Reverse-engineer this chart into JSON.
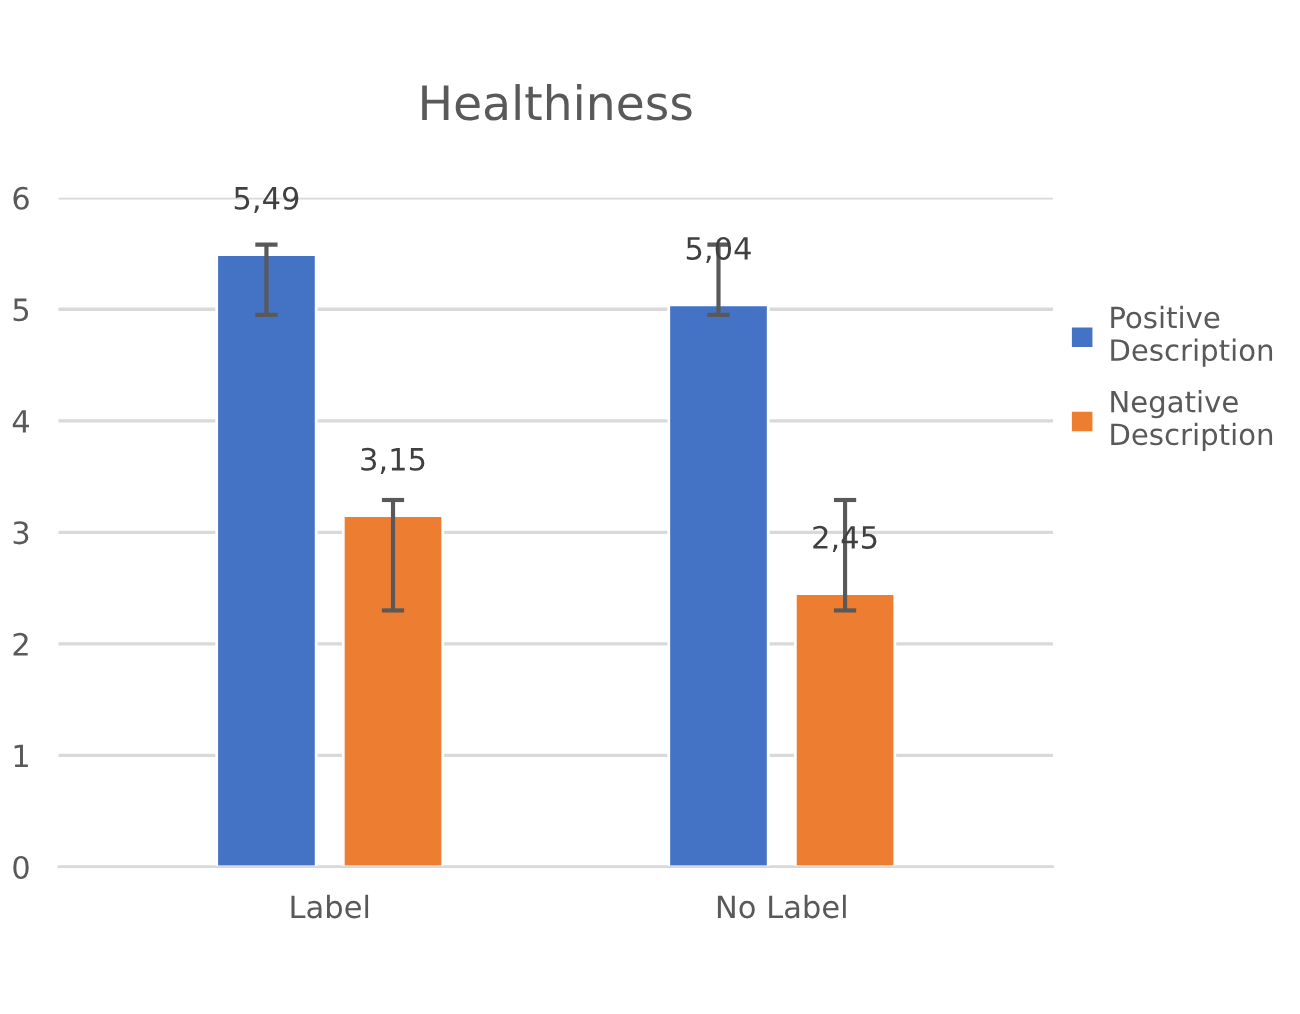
{
  "chart_data": {
    "type": "bar",
    "title": "Healthiness",
    "categories": [
      "Label",
      "No Label"
    ],
    "series": [
      {
        "name": "Positive Description",
        "color": "#4472c4",
        "values": [
          5.49,
          5.04
        ],
        "errors": [
          [
            4.95,
            5.58
          ],
          [
            4.95,
            5.58
          ]
        ],
        "value_labels": [
          "5,49",
          "5,04"
        ]
      },
      {
        "name": "Negative Description",
        "color": "#ed7d31",
        "values": [
          3.15,
          2.45
        ],
        "errors": [
          [
            2.3,
            3.29
          ],
          [
            2.3,
            3.29
          ]
        ],
        "value_labels": [
          "3,15",
          "2,45"
        ]
      }
    ],
    "ylim": [
      0,
      6
    ],
    "yticks": [
      0,
      1,
      2,
      3,
      4,
      5,
      6
    ],
    "grid": "y",
    "legend": "right"
  }
}
